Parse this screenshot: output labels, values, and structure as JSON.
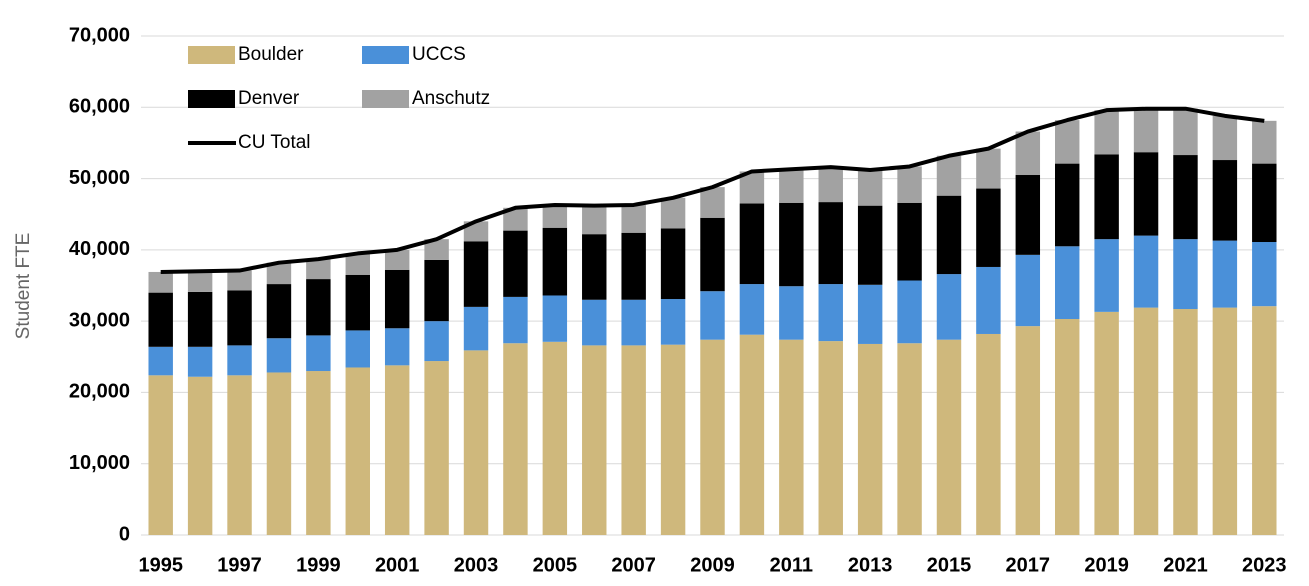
{
  "chart_data": {
    "type": "bar",
    "stacked": true,
    "y_label": "Student FTE",
    "categories": [
      "1995",
      null,
      "1997",
      null,
      "1999",
      null,
      "2001",
      null,
      "2003",
      null,
      "2005",
      null,
      "2007",
      null,
      "2009",
      null,
      "2011",
      null,
      "2013",
      null,
      "2015",
      null,
      "2017",
      null,
      "2019",
      null,
      "2021",
      null,
      "2023"
    ],
    "series": [
      {
        "name": "Boulder",
        "color": "#cfb87c",
        "values": [
          22400,
          22200,
          22400,
          22800,
          23000,
          23500,
          23800,
          24400,
          25900,
          26900,
          27100,
          26600,
          26600,
          26700,
          27400,
          28100,
          27400,
          27200,
          26800,
          26900,
          27400,
          28200,
          29300,
          30300,
          31300,
          31900,
          31700,
          31900,
          32100
        ]
      },
      {
        "name": "UCCS",
        "color": "#4a90d9",
        "values": [
          4000,
          4200,
          4200,
          4800,
          5000,
          5200,
          5200,
          5600,
          6100,
          6500,
          6500,
          6400,
          6400,
          6400,
          6800,
          7100,
          7500,
          8000,
          8300,
          8800,
          9200,
          9400,
          10000,
          10200,
          10200,
          10100,
          9800,
          9400,
          9000
        ]
      },
      {
        "name": "Denver",
        "color": "#000000",
        "values": [
          7600,
          7700,
          7700,
          7600,
          7900,
          7800,
          8200,
          8600,
          9200,
          9300,
          9500,
          9200,
          9400,
          9900,
          10300,
          11300,
          11700,
          11500,
          11100,
          10900,
          11000,
          11000,
          11200,
          11600,
          11900,
          11700,
          11800,
          11300,
          11000
        ]
      },
      {
        "name": "Anschutz",
        "color": "#a2a2a2",
        "values": [
          2900,
          2900,
          2800,
          3000,
          2800,
          3000,
          2800,
          2900,
          2800,
          3200,
          3200,
          4000,
          3900,
          4300,
          4300,
          4500,
          4700,
          4900,
          5000,
          5100,
          5600,
          5600,
          6100,
          6100,
          6200,
          6100,
          6500,
          6200,
          6000
        ]
      },
      {
        "name": "CU Total",
        "type": "line",
        "color": "#000000",
        "values": [
          36900,
          37000,
          37100,
          38200,
          38700,
          39500,
          40000,
          41500,
          44000,
          45900,
          46300,
          46200,
          46300,
          47300,
          48800,
          51000,
          51300,
          51600,
          51200,
          51700,
          53200,
          54200,
          56600,
          58200,
          59600,
          59800,
          59800,
          58800,
          58100
        ]
      }
    ],
    "ylim": [
      0,
      70000
    ],
    "yticks": [
      0,
      {
        "value": 10000,
        "label": "10,000"
      },
      {
        "value": 20000,
        "label": "20,000"
      },
      {
        "value": 30000,
        "label": "30,000"
      },
      {
        "value": 40000,
        "label": "40,000"
      },
      {
        "value": 50000,
        "label": "50,000"
      },
      {
        "value": 60000,
        "label": "60,000"
      },
      {
        "value": 70000,
        "label": "70,000"
      }
    ],
    "grid": true,
    "legend": "upper left"
  }
}
